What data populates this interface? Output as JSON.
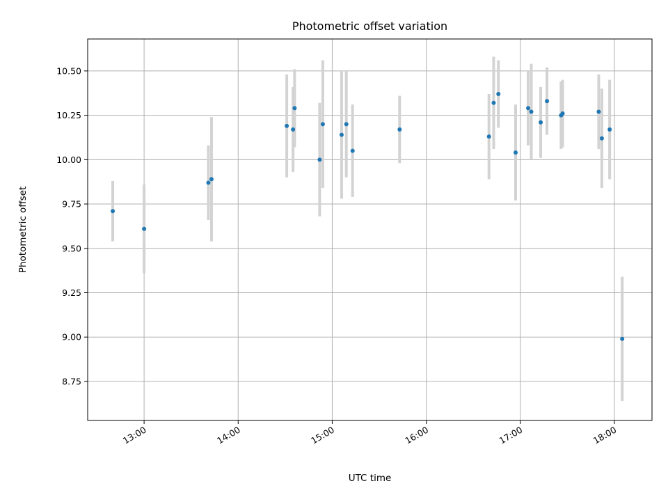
{
  "chart_data": {
    "type": "scatter",
    "title": "Photometric offset variation",
    "xlabel": "UTC time",
    "ylabel": "Photometric offset",
    "xlim": [
      "12:24",
      "18:24"
    ],
    "ylim": [
      8.53,
      10.68
    ],
    "x_ticks": [
      "13:00",
      "14:00",
      "15:00",
      "16:00",
      "17:00",
      "18:00"
    ],
    "y_ticks": [
      8.75,
      9.0,
      9.25,
      9.5,
      9.75,
      10.0,
      10.25,
      10.5
    ],
    "y_tick_labels": [
      "8.75",
      "9.00",
      "9.25",
      "9.50",
      "9.75",
      "10.00",
      "10.25",
      "10.50"
    ],
    "grid": true,
    "marker_color": "#1f77b4",
    "errorbar_color": "#d3d3d3",
    "grid_color": "#b0b0b0",
    "points": [
      {
        "x": "12:40",
        "y": 9.71,
        "yerr": 0.17
      },
      {
        "x": "13:00",
        "y": 9.61,
        "yerr": 0.25
      },
      {
        "x": "13:41",
        "y": 9.87,
        "yerr": 0.21
      },
      {
        "x": "13:43",
        "y": 9.89,
        "yerr": 0.35
      },
      {
        "x": "14:31",
        "y": 10.19,
        "yerr": 0.29
      },
      {
        "x": "14:35",
        "y": 10.17,
        "yerr": 0.24
      },
      {
        "x": "14:36",
        "y": 10.29,
        "yerr": 0.22
      },
      {
        "x": "14:52",
        "y": 10.0,
        "yerr": 0.32
      },
      {
        "x": "14:54",
        "y": 10.2,
        "yerr": 0.36
      },
      {
        "x": "15:06",
        "y": 10.14,
        "yerr": 0.36
      },
      {
        "x": "15:09",
        "y": 10.2,
        "yerr": 0.3
      },
      {
        "x": "15:13",
        "y": 10.05,
        "yerr": 0.26
      },
      {
        "x": "15:43",
        "y": 10.17,
        "yerr": 0.19
      },
      {
        "x": "16:40",
        "y": 10.13,
        "yerr": 0.24
      },
      {
        "x": "16:43",
        "y": 10.32,
        "yerr": 0.26
      },
      {
        "x": "16:46",
        "y": 10.37,
        "yerr": 0.19
      },
      {
        "x": "16:57",
        "y": 10.04,
        "yerr": 0.27
      },
      {
        "x": "17:05",
        "y": 10.29,
        "yerr": 0.21
      },
      {
        "x": "17:07",
        "y": 10.27,
        "yerr": 0.27
      },
      {
        "x": "17:13",
        "y": 10.21,
        "yerr": 0.2
      },
      {
        "x": "17:17",
        "y": 10.33,
        "yerr": 0.19
      },
      {
        "x": "17:26",
        "y": 10.25,
        "yerr": 0.19
      },
      {
        "x": "17:27",
        "y": 10.26,
        "yerr": 0.19
      },
      {
        "x": "17:50",
        "y": 10.27,
        "yerr": 0.21
      },
      {
        "x": "17:52",
        "y": 10.12,
        "yerr": 0.28
      },
      {
        "x": "17:57",
        "y": 10.17,
        "yerr": 0.28
      },
      {
        "x": "18:05",
        "y": 8.99,
        "yerr": 0.35
      }
    ]
  }
}
